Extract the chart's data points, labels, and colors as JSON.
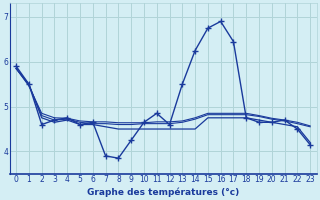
{
  "title": "Graphe des températures (°c)",
  "background_color": "#d4eef4",
  "grid_color": "#b0d4d8",
  "line_color": "#1a3a9c",
  "xlim": [
    -0.5,
    23.5
  ],
  "ylim": [
    3.5,
    7.3
  ],
  "yticks": [
    4,
    5,
    6,
    7
  ],
  "ytick_labels": [
    "4",
    "5",
    "6",
    "7"
  ],
  "xticks": [
    0,
    1,
    2,
    3,
    4,
    5,
    6,
    7,
    8,
    9,
    10,
    11,
    12,
    13,
    14,
    15,
    16,
    17,
    18,
    19,
    20,
    21,
    22,
    23
  ],
  "line1_x": [
    0,
    1,
    2,
    3,
    4,
    5,
    6,
    7,
    8,
    9,
    10,
    11,
    12,
    13,
    14,
    15,
    16,
    17,
    18,
    19,
    20,
    21,
    22,
    23
  ],
  "line1_y": [
    5.9,
    5.5,
    4.6,
    4.7,
    4.75,
    4.6,
    4.65,
    3.9,
    3.85,
    4.25,
    4.65,
    4.85,
    4.6,
    5.5,
    6.25,
    6.75,
    6.9,
    6.45,
    4.75,
    4.65,
    4.65,
    4.7,
    4.5,
    4.15
  ],
  "line2_x": [
    0,
    1,
    2,
    3,
    4,
    5,
    6,
    7,
    8,
    9,
    10,
    11,
    12,
    13,
    14,
    15,
    16,
    17,
    18,
    19,
    20,
    21,
    22,
    23
  ],
  "line2_y": [
    5.85,
    5.5,
    4.75,
    4.65,
    4.7,
    4.6,
    4.6,
    4.55,
    4.5,
    4.5,
    4.5,
    4.5,
    4.5,
    4.5,
    4.5,
    4.75,
    4.75,
    4.75,
    4.75,
    4.7,
    4.65,
    4.6,
    4.55,
    4.2
  ],
  "line3_x": [
    0,
    1,
    2,
    3,
    4,
    5,
    6,
    7,
    8,
    9,
    10,
    11,
    12,
    13,
    14,
    15,
    16,
    17,
    18,
    19,
    20,
    21,
    22,
    23
  ],
  "line3_y": [
    5.85,
    5.48,
    4.8,
    4.7,
    4.72,
    4.65,
    4.62,
    4.62,
    4.6,
    4.6,
    4.62,
    4.62,
    4.62,
    4.65,
    4.72,
    4.82,
    4.82,
    4.82,
    4.82,
    4.78,
    4.72,
    4.68,
    4.62,
    4.55
  ],
  "line4_x": [
    0,
    1,
    2,
    3,
    4,
    5,
    6,
    7,
    8,
    9,
    10,
    11,
    12,
    13,
    14,
    15,
    16,
    17,
    18,
    19,
    20,
    21,
    22,
    23
  ],
  "line4_y": [
    5.85,
    5.46,
    4.85,
    4.75,
    4.74,
    4.68,
    4.66,
    4.66,
    4.64,
    4.64,
    4.64,
    4.66,
    4.66,
    4.68,
    4.75,
    4.85,
    4.85,
    4.85,
    4.85,
    4.8,
    4.74,
    4.7,
    4.65,
    4.57
  ]
}
